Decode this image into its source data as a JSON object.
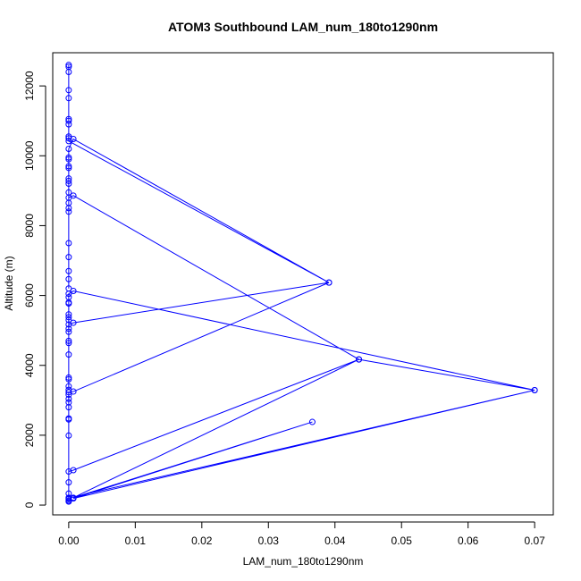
{
  "chart_data": {
    "type": "line",
    "title": "ATOM3 Southbound LAM_num_180to1290nm",
    "xlabel": "LAM_num_180to1290nm",
    "ylabel": "Altitude (m)",
    "xlim": [
      -0.0024,
      0.0728
    ],
    "ylim": [
      -280,
      12950
    ],
    "x_ticks": [
      0,
      0.01,
      0.02,
      0.03,
      0.04,
      0.05,
      0.06,
      0.07
    ],
    "x_tick_labels": [
      "0.00",
      "0.01",
      "0.02",
      "0.03",
      "0.04",
      "0.05",
      "0.06",
      "0.07"
    ],
    "y_ticks": [
      0,
      2000,
      4000,
      6000,
      8000,
      10000,
      12000
    ],
    "y_tick_labels": [
      "0",
      "2000",
      "4000",
      "6000",
      "8000",
      "10000",
      "12000"
    ],
    "grid": false,
    "legend": "none",
    "series": [
      {
        "color": "#0000ff",
        "marker": "open-circle",
        "points": [
          [
            0,
            100
          ],
          [
            0,
            130
          ],
          [
            0,
            170
          ],
          [
            0,
            210
          ],
          [
            0,
            330
          ],
          [
            0,
            650
          ],
          [
            0,
            960
          ],
          [
            0.0007,
            1000
          ],
          [
            0.0436,
            4170
          ],
          [
            0.0007,
            210
          ],
          [
            0.0366,
            2380
          ],
          [
            0.0007,
            190
          ],
          [
            0.07,
            3290
          ],
          [
            0,
            200
          ],
          [
            0,
            1990
          ],
          [
            0,
            2450
          ],
          [
            0,
            2480
          ],
          [
            0,
            2800
          ],
          [
            0,
            2940
          ],
          [
            0,
            3040
          ],
          [
            0,
            3160
          ],
          [
            0,
            3230
          ],
          [
            0.0007,
            3250
          ],
          [
            0.0391,
            6370
          ],
          [
            0.0007,
            5220
          ],
          [
            0,
            5170
          ],
          [
            0,
            3300
          ],
          [
            0,
            3400
          ],
          [
            0,
            3600
          ],
          [
            0,
            3650
          ],
          [
            0,
            4310
          ],
          [
            0,
            4640
          ],
          [
            0,
            4700
          ],
          [
            0,
            4960
          ],
          [
            0,
            5050
          ],
          [
            0,
            5300
          ],
          [
            0,
            5380
          ],
          [
            0,
            5460
          ],
          [
            0,
            5770
          ],
          [
            0,
            5800
          ],
          [
            0,
            5950
          ],
          [
            0,
            6050
          ],
          [
            0.0007,
            6130
          ],
          [
            0.07,
            3290
          ],
          [
            0.0436,
            4170
          ],
          [
            0.0007,
            8860
          ],
          [
            0,
            8800
          ],
          [
            0,
            6200
          ],
          [
            0,
            6470
          ],
          [
            0,
            6700
          ],
          [
            0,
            7100
          ],
          [
            0,
            7500
          ],
          [
            0,
            8400
          ],
          [
            0,
            8500
          ],
          [
            0,
            8650
          ],
          [
            0,
            8950
          ],
          [
            0,
            9200
          ],
          [
            0,
            9280
          ],
          [
            0,
            9350
          ],
          [
            0,
            9650
          ],
          [
            0,
            9700
          ],
          [
            0,
            9900
          ],
          [
            0,
            9950
          ],
          [
            0,
            10200
          ],
          [
            0.0007,
            10480
          ],
          [
            0.0391,
            6370
          ],
          [
            0,
            10420
          ],
          [
            0,
            10500
          ],
          [
            0,
            10550
          ],
          [
            0,
            10900
          ],
          [
            0,
            11000
          ],
          [
            0,
            11050
          ],
          [
            0,
            11650
          ],
          [
            0,
            11880
          ],
          [
            0,
            12400
          ],
          [
            0,
            12550
          ],
          [
            0,
            12600
          ]
        ]
      }
    ]
  }
}
